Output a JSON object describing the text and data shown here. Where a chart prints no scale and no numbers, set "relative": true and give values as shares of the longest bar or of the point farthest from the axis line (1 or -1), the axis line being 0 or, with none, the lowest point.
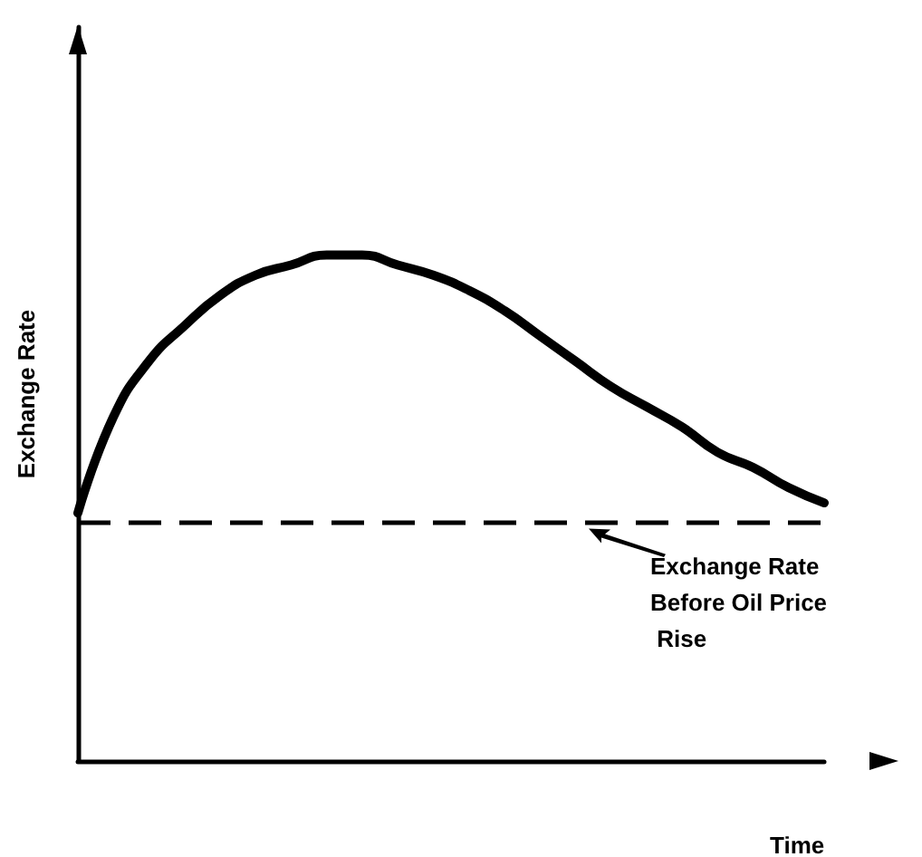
{
  "chart_data": {
    "type": "line",
    "relative": true,
    "xlabel": "Time",
    "ylabel": "Exchange Rate",
    "line_style": "solid",
    "marker": "none",
    "grid": false,
    "categories": [
      null,
      null,
      null,
      null,
      null,
      null,
      null,
      null,
      null,
      null,
      null,
      null,
      null,
      null,
      null,
      null,
      null,
      null,
      null,
      null,
      null,
      null
    ],
    "series": [
      {
        "color": "#000000",
        "values": [
          0.49,
          0.68,
          0.79,
          0.86,
          0.92,
          0.96,
          0.98,
          1.0,
          1.0,
          0.98,
          0.96,
          0.93,
          0.89,
          0.84,
          0.79,
          0.74,
          0.7,
          0.66,
          0.61,
          0.58,
          0.54,
          0.51
        ]
      }
    ],
    "ref_lines": [
      {
        "axis": "y",
        "value": 0.47,
        "label": "Exchange Rate Before Oil Price Rise",
        "color": "#000000",
        "line_style": "dashed"
      }
    ]
  }
}
